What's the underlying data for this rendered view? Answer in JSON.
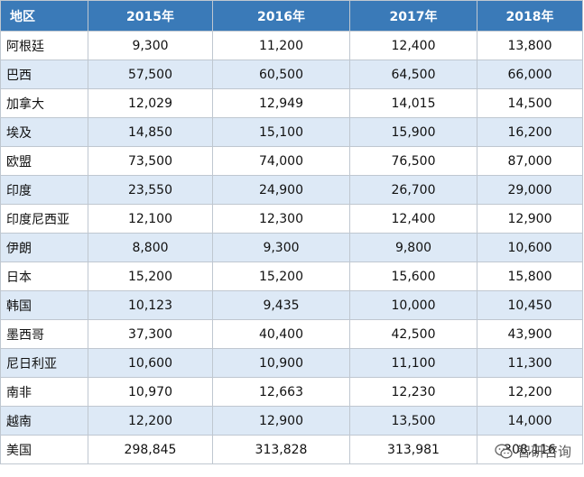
{
  "table": {
    "headers": [
      "地区",
      "2015年",
      "2016年",
      "2017年",
      "2018年"
    ],
    "rows": [
      [
        "阿根廷",
        "9,300",
        "11,200",
        "12,400",
        "13,800"
      ],
      [
        "巴西",
        "57,500",
        "60,500",
        "64,500",
        "66,000"
      ],
      [
        "加拿大",
        "12,029",
        "12,949",
        "14,015",
        "14,500"
      ],
      [
        "埃及",
        "14,850",
        "15,100",
        "15,900",
        "16,200"
      ],
      [
        "欧盟",
        "73,500",
        "74,000",
        "76,500",
        "87,000"
      ],
      [
        "印度",
        "23,550",
        "24,900",
        "26,700",
        "29,000"
      ],
      [
        "印度尼西亚",
        "12,100",
        "12,300",
        "12,400",
        "12,900"
      ],
      [
        "伊朗",
        "8,800",
        "9,300",
        "9,800",
        "10,600"
      ],
      [
        "日本",
        "15,200",
        "15,200",
        "15,600",
        "15,800"
      ],
      [
        "韩国",
        "10,123",
        "9,435",
        "10,000",
        "10,450"
      ],
      [
        "墨西哥",
        "37,300",
        "40,400",
        "42,500",
        "43,900"
      ],
      [
        "尼日利亚",
        "10,600",
        "10,900",
        "11,100",
        "11,300"
      ],
      [
        "南非",
        "10,970",
        "12,663",
        "12,230",
        "12,200"
      ],
      [
        "越南",
        "12,200",
        "12,900",
        "13,500",
        "14,000"
      ],
      [
        "美国",
        "298,845",
        "313,828",
        "313,981",
        "308,116"
      ]
    ]
  },
  "watermark": {
    "text": "智研咨询",
    "icon": "wechat-icon"
  },
  "colors": {
    "header_bg": "#3a7ab8",
    "header_text": "#ffffff",
    "row_shade": "#dde9f6",
    "border": "#bfc7d0"
  }
}
